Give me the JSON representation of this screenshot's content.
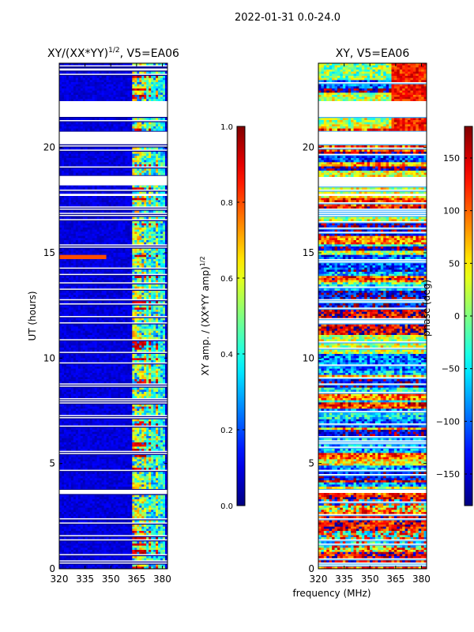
{
  "suptitle": "2022-01-31 0.0-24.0",
  "xlabel": "frequency (MHz)",
  "chart_data": [
    {
      "type": "heatmap",
      "title_main": "XY/(XX*YY)",
      "title_sup": "1/2",
      "title_tail": ", V5=EA06",
      "ylabel": "UT (hours)",
      "xlim": [
        320,
        383
      ],
      "ylim": [
        0,
        24
      ],
      "xticks": [
        320,
        335,
        350,
        365,
        380
      ],
      "yticks": [
        0,
        5,
        10,
        15,
        20
      ],
      "colorbar": {
        "label_main": "XY amp. / (XX*YY amp)",
        "label_sup": "1/2",
        "range": [
          0.0,
          1.0
        ],
        "ticks": [
          "0.0",
          "0.2",
          "0.4",
          "0.6",
          "0.8",
          "1.0"
        ],
        "tick_values": [
          0.0,
          0.2,
          0.4,
          0.6,
          0.8,
          1.0
        ]
      },
      "gaps_ut_hours": [
        [
          3.55,
          3.75
        ],
        [
          17.7,
          17.8
        ],
        [
          18.2,
          18.65
        ],
        [
          20.15,
          20.75
        ],
        [
          21.45,
          22.2
        ],
        [
          23.65,
          23.75
        ]
      ],
      "bright_channels_mhz": [
        364,
        366.5,
        369.5,
        372.5,
        377
      ]
    },
    {
      "type": "heatmap",
      "title": "XY, V5=EA06",
      "ylabel": "",
      "xlim": [
        320,
        383
      ],
      "ylim": [
        0,
        24
      ],
      "xticks": [
        320,
        335,
        350,
        365,
        380
      ],
      "yticks": [
        0,
        5,
        10,
        15,
        20
      ],
      "colorbar": {
        "label": "phase (deg)",
        "range": [
          -180,
          180
        ],
        "ticks": [
          "150",
          "100",
          "50",
          "0",
          "−50",
          "−100",
          "−150"
        ],
        "tick_values": [
          150,
          100,
          50,
          0,
          -50,
          -100,
          -150
        ]
      },
      "gaps_ut_hours": [
        [
          3.6,
          3.75
        ],
        [
          11.65,
          11.8
        ],
        [
          17.7,
          17.8
        ],
        [
          18.2,
          18.6
        ],
        [
          20.15,
          20.75
        ],
        [
          21.45,
          22.2
        ]
      ]
    }
  ]
}
